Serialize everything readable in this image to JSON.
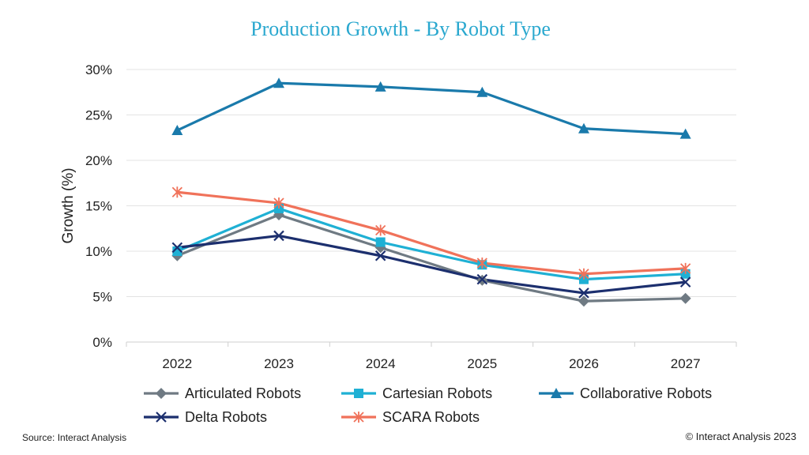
{
  "chart_data": {
    "type": "line",
    "title": "Production Growth - By Robot Type",
    "xlabel": "",
    "ylabel": "Growth (%)",
    "ylim": [
      0,
      30
    ],
    "yticks": [
      0,
      5,
      10,
      15,
      20,
      25,
      30
    ],
    "ytick_labels": [
      "0%",
      "5%",
      "10%",
      "15%",
      "20%",
      "25%",
      "30%"
    ],
    "categories": [
      "2022",
      "2023",
      "2024",
      "2025",
      "2026",
      "2027"
    ],
    "grid": true,
    "legend_position": "bottom",
    "series": [
      {
        "name": "Articulated Robots",
        "color": "#6f7a83",
        "marker": "diamond",
        "values": [
          9.5,
          14.0,
          10.4,
          6.8,
          4.5,
          4.8
        ]
      },
      {
        "name": "Cartesian Robots",
        "color": "#1fb0d4",
        "marker": "square",
        "values": [
          10.0,
          14.7,
          11.0,
          8.5,
          6.9,
          7.5
        ]
      },
      {
        "name": "Collaborative Robots",
        "color": "#1a7aab",
        "marker": "triangle",
        "values": [
          23.3,
          28.5,
          28.1,
          27.5,
          23.5,
          22.9
        ]
      },
      {
        "name": "Delta Robots",
        "color": "#1c2f6e",
        "marker": "x",
        "values": [
          10.4,
          11.7,
          9.5,
          6.9,
          5.4,
          6.6
        ]
      },
      {
        "name": "SCARA Robots",
        "color": "#f0725a",
        "marker": "star",
        "values": [
          16.5,
          15.3,
          12.3,
          8.7,
          7.5,
          8.1
        ]
      }
    ]
  },
  "footer": {
    "source": "Source: Interact Analysis",
    "copyright": "© Interact Analysis 2023"
  }
}
